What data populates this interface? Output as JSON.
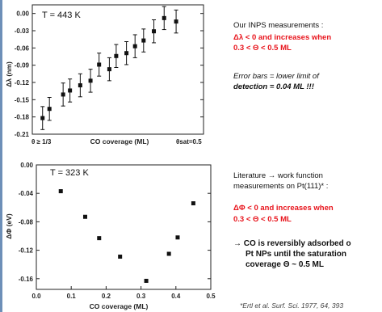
{
  "chart_data": [
    {
      "type": "scatter",
      "temperature_label": "T = 443 K",
      "xlabel": "CO coverage (ML)",
      "ylabel": "Δλ (nm)",
      "xlim": [
        0.05,
        0.55
      ],
      "ylim": [
        -0.21,
        0.015
      ],
      "yticks": [
        "0.00",
        "-0.03",
        "-0.06",
        "-0.09",
        "-0.12",
        "-0.15",
        "-0.18",
        "-0.21"
      ],
      "ytick_values": [
        0,
        -0.03,
        -0.06,
        -0.09,
        -0.12,
        -0.15,
        -0.18,
        -0.21
      ],
      "x_start_label": "θ ≥ 1/3",
      "x_end_label": "θsat=0.5",
      "error_bar": 0.02,
      "points": [
        {
          "x": 0.08,
          "y": -0.182
        },
        {
          "x": 0.1,
          "y": -0.166
        },
        {
          "x": 0.14,
          "y": -0.141
        },
        {
          "x": 0.16,
          "y": -0.134
        },
        {
          "x": 0.19,
          "y": -0.125
        },
        {
          "x": 0.22,
          "y": -0.117
        },
        {
          "x": 0.245,
          "y": -0.089
        },
        {
          "x": 0.275,
          "y": -0.097
        },
        {
          "x": 0.295,
          "y": -0.074
        },
        {
          "x": 0.325,
          "y": -0.069
        },
        {
          "x": 0.35,
          "y": -0.057
        },
        {
          "x": 0.375,
          "y": -0.047
        },
        {
          "x": 0.405,
          "y": -0.031
        },
        {
          "x": 0.435,
          "y": -0.008
        },
        {
          "x": 0.47,
          "y": -0.014
        }
      ]
    },
    {
      "type": "scatter",
      "temperature_label": "T = 323 K",
      "xlabel": "CO coverage (ML)",
      "ylabel": "ΔΦ (eV)",
      "xlim": [
        0.0,
        0.5
      ],
      "ylim": [
        -0.175,
        0.0
      ],
      "xticks": [
        "0.0",
        "0.1",
        "0.2",
        "0.3",
        "0.4",
        "0.5"
      ],
      "xtick_values": [
        0.0,
        0.1,
        0.2,
        0.3,
        0.4,
        0.5
      ],
      "yticks": [
        "0.00",
        "-0.04",
        "-0.08",
        "-0.12",
        "-0.16"
      ],
      "ytick_values": [
        0.0,
        -0.04,
        -0.08,
        -0.12,
        -0.16
      ],
      "points": [
        {
          "x": 0.07,
          "y": -0.037
        },
        {
          "x": 0.14,
          "y": -0.073
        },
        {
          "x": 0.18,
          "y": -0.103
        },
        {
          "x": 0.24,
          "y": -0.129
        },
        {
          "x": 0.315,
          "y": -0.163
        },
        {
          "x": 0.38,
          "y": -0.125
        },
        {
          "x": 0.405,
          "y": -0.102
        },
        {
          "x": 0.45,
          "y": -0.054
        }
      ]
    }
  ],
  "notes": {
    "inps_title": "Our INPS measurements :",
    "inps_result_1": "Δλ < 0 and increases when",
    "inps_result_2": "0.3 < Θ < 0.5 ML",
    "error_bars_1": "Error bars = lower limit of",
    "error_bars_2": "detection = 0.04 ML !!!",
    "literature_1": "Literature → work function",
    "literature_2": "measurements on Pt(111)* :",
    "wf_result_1": "ΔΦ < 0 and increases when",
    "wf_result_2": "0.3 < Θ < 0.5 ML",
    "conclusion_1": "→ CO is reversibly adsorbed o",
    "conclusion_2": "Pt NPs until the saturation",
    "conclusion_3": "coverage Θ ~ 0.5 ML",
    "reference": "*Ertl et al. Surf. Sci. 1977, 64, 393"
  }
}
